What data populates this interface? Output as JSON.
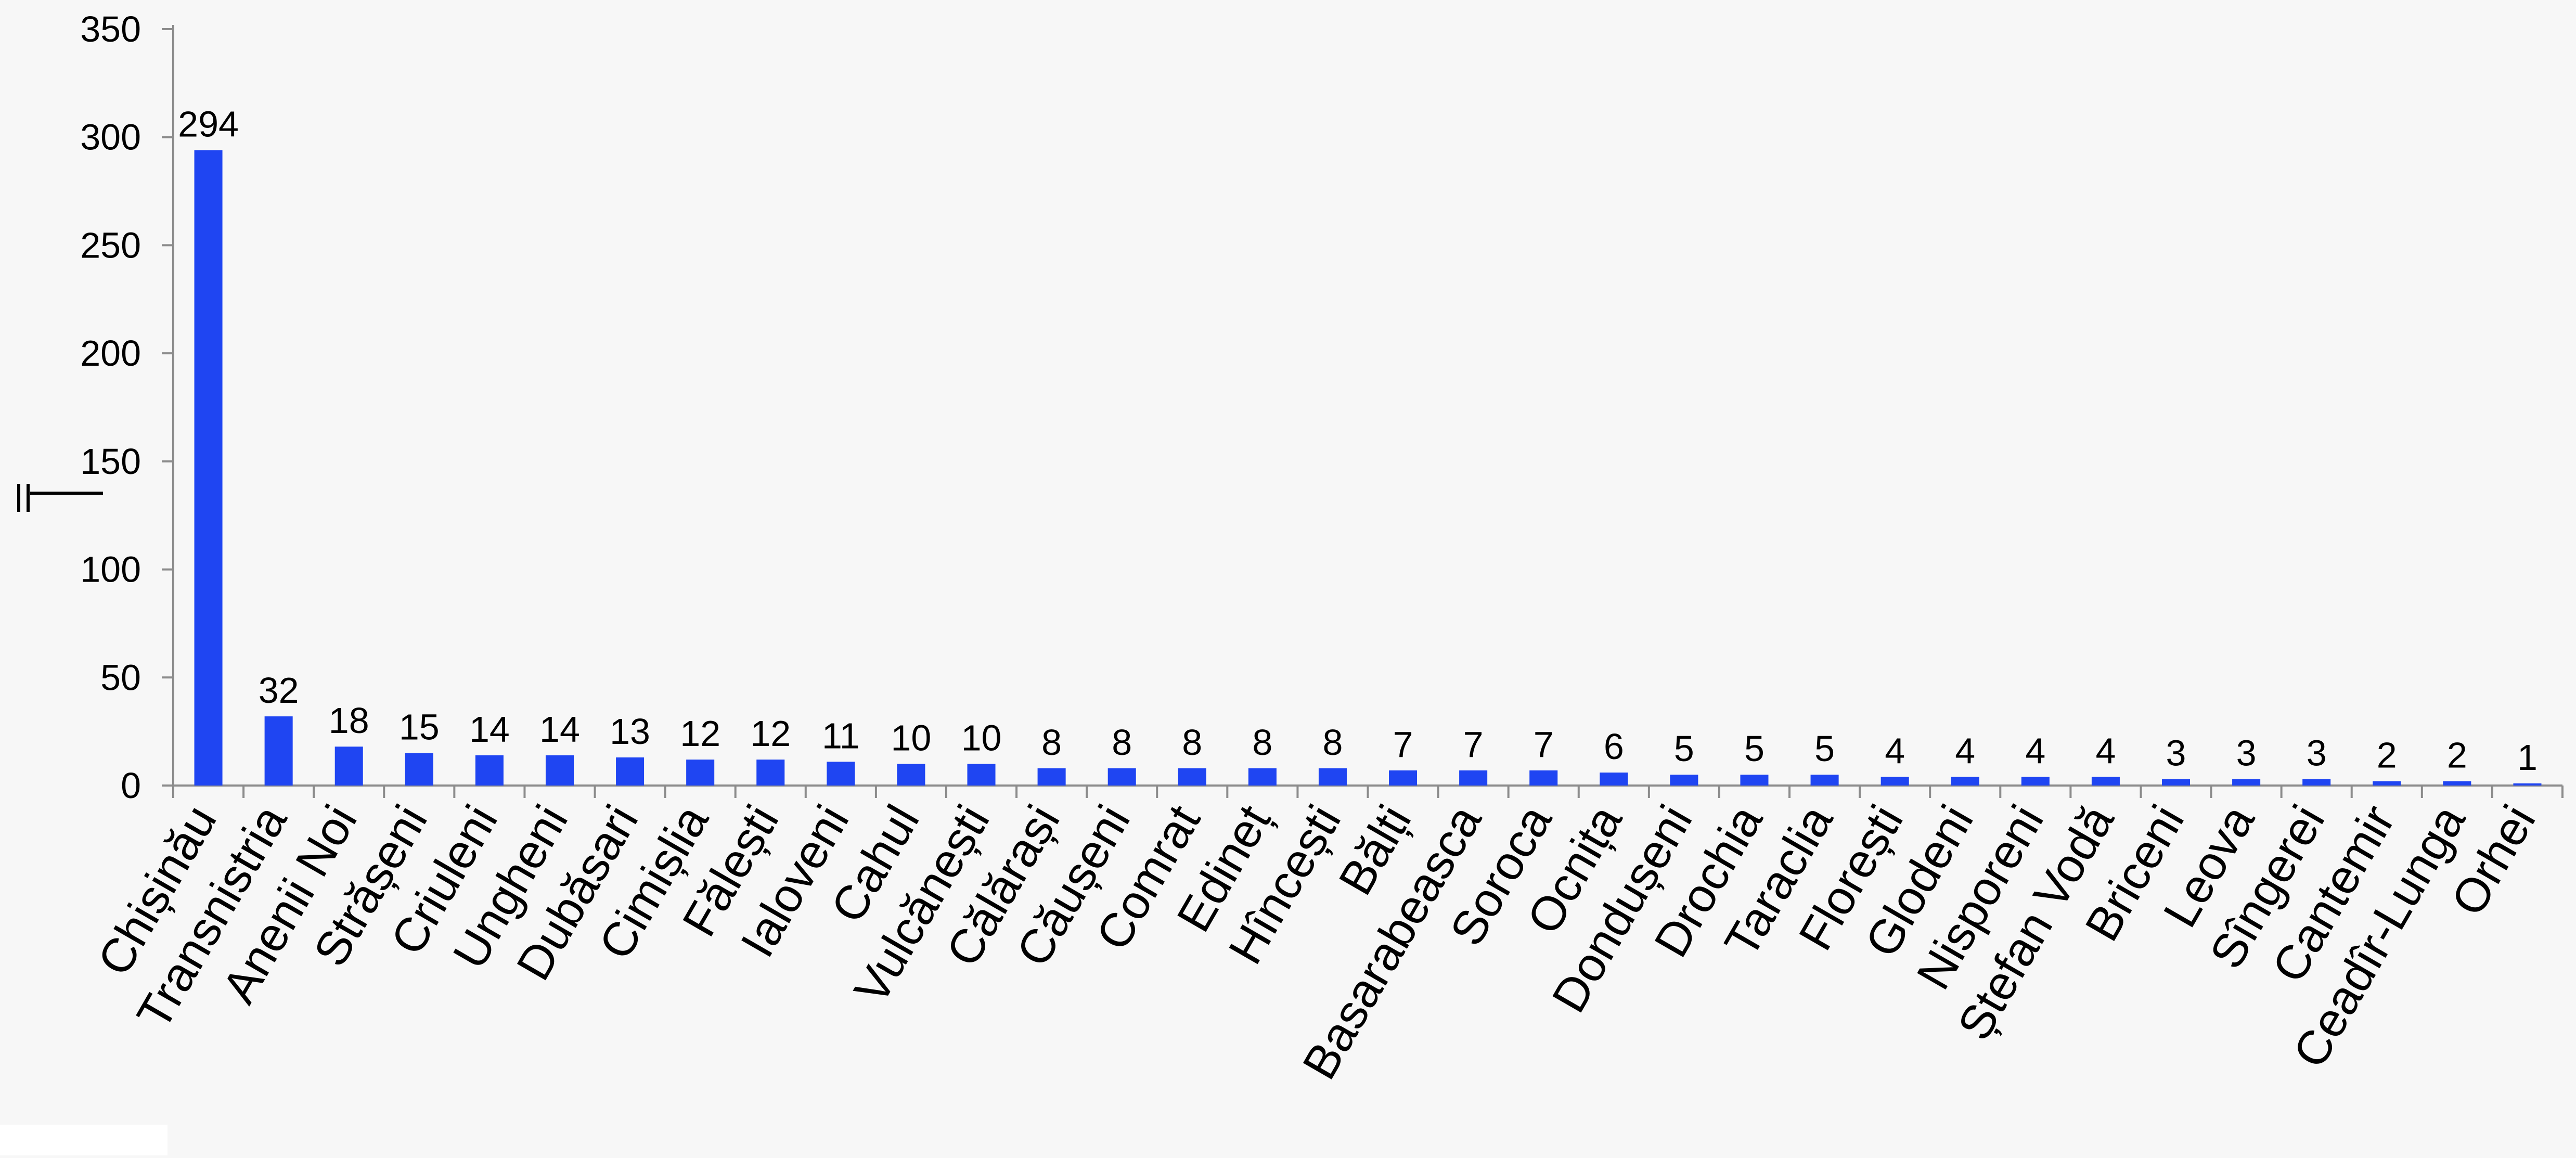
{
  "chart_data": {
    "type": "bar",
    "title": "",
    "xlabel": "",
    "ylabel": "",
    "ylim": [
      0,
      350
    ],
    "yticks": [
      0,
      50,
      100,
      150,
      200,
      250,
      300,
      350
    ],
    "grid": false,
    "legend": "none",
    "bar_color": "#1f45f2",
    "categories": [
      "Chișinău",
      "Transnistria",
      "Anenii Noi",
      "Strășeni",
      "Criuleni",
      "Ungheni",
      "Dubăsari",
      "Cimișlia",
      "Fălești",
      "Ialoveni",
      "Cahul",
      "Vulcănești",
      "Călărași",
      "Căușeni",
      "Comrat",
      "Edineț",
      "Hîncești",
      "Bălți",
      "Basarabeasca",
      "Soroca",
      "Ocnița",
      "Dondușeni",
      "Drochia",
      "Taraclia",
      "Florești",
      "Glodeni",
      "Nisporeni",
      "Ștefan Vodă",
      "Briceni",
      "Leova",
      "Sîngerei",
      "Cantemir",
      "Ceadîr-Lunga",
      "Orhei"
    ],
    "values": [
      294,
      32,
      18,
      15,
      14,
      14,
      13,
      12,
      12,
      11,
      10,
      10,
      8,
      8,
      8,
      8,
      8,
      7,
      7,
      7,
      6,
      5,
      5,
      5,
      4,
      4,
      4,
      4,
      3,
      3,
      3,
      2,
      2,
      1
    ]
  }
}
